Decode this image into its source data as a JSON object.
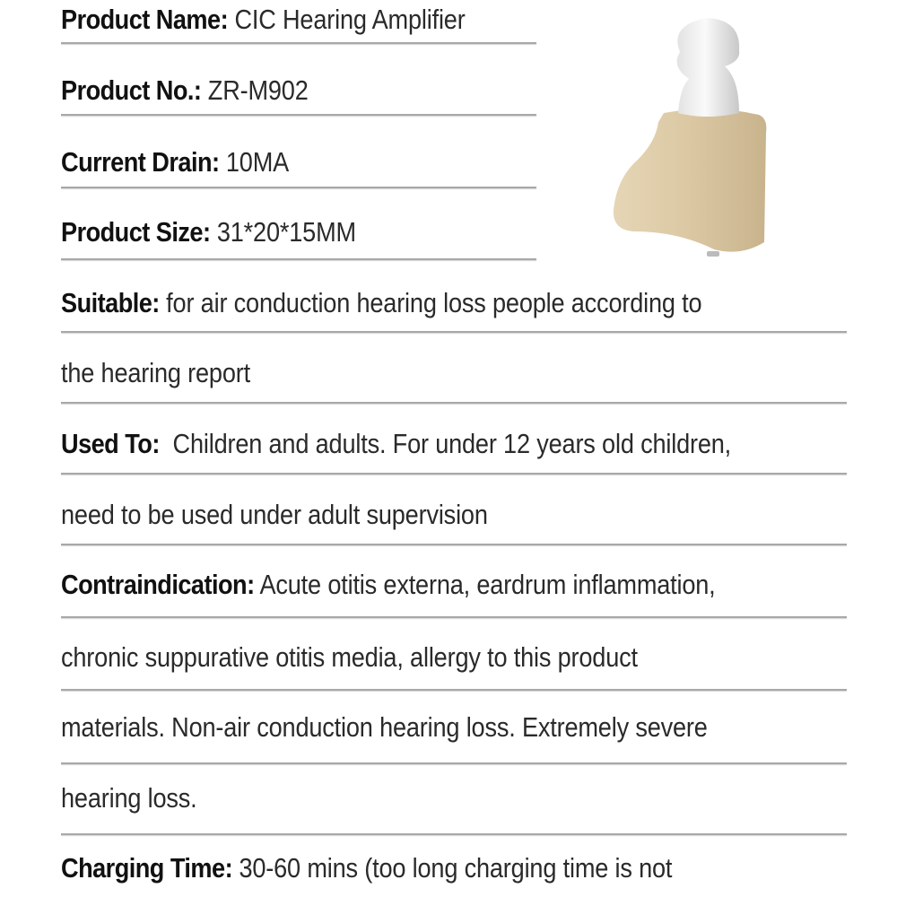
{
  "specs": [
    {
      "label": "Product Name:",
      "value": " CIC Hearing Amplifier"
    },
    {
      "label": "Product No.:",
      "value": " ZR-M902"
    },
    {
      "label": "Current Drain:",
      "value": " 10MA"
    },
    {
      "label": "Product Size:",
      "value": " 31*20*15MM"
    },
    {
      "label": "Suitable:",
      "value": " for air conduction hearing loss people according to"
    },
    {
      "label": "",
      "value": "the hearing report"
    },
    {
      "label": "Used To:",
      "value": "  Children and adults. For under 12 years old children,"
    },
    {
      "label": "",
      "value": "need to be used under adult supervision"
    },
    {
      "label": "Contraindication:",
      "value": " Acute otitis externa, eardrum inflammation,"
    },
    {
      "label": "",
      "value": "chronic suppurative otitis media, allergy to this product"
    },
    {
      "label": "",
      "value": "materials. Non-air conduction hearing loss. Extremely severe"
    },
    {
      "label": "",
      "value": "hearing loss."
    },
    {
      "label": "Charging Time:",
      "value": " 30-60 mins (too long charging time is not"
    }
  ],
  "colors": {
    "body_shell": "#dccaa6",
    "ear_tip": "#eeeeee",
    "divider": "#a8a8a8"
  }
}
